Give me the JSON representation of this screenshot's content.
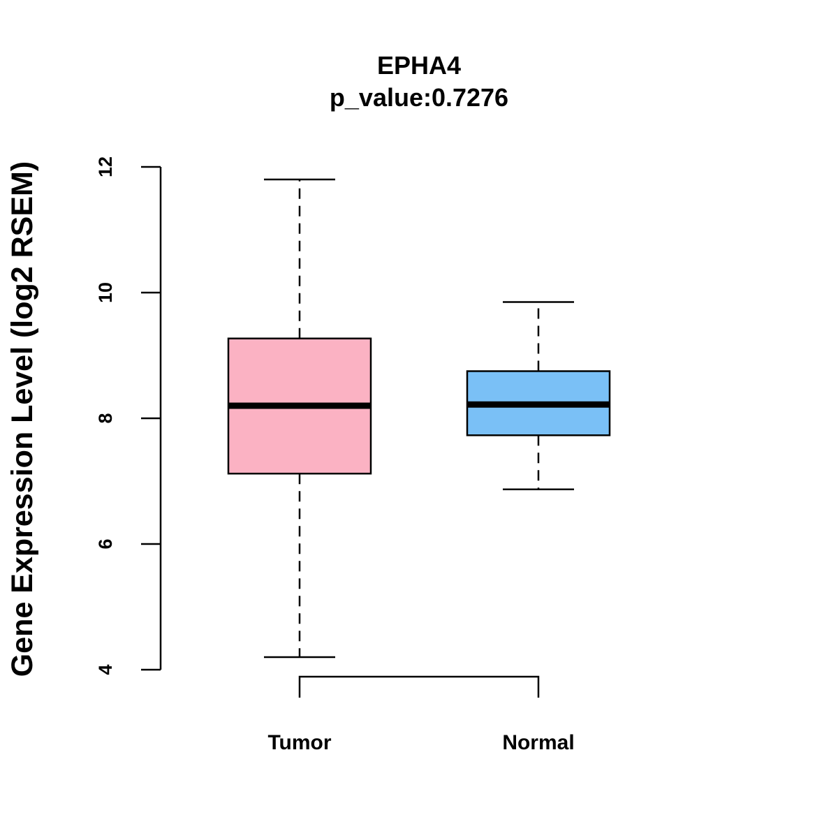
{
  "chart_data": {
    "type": "boxplot",
    "title": "EPHA4",
    "subtitle": "p_value:0.7276",
    "xlabel": "",
    "ylabel": "Gene Expression Level (log2 RSEM)",
    "ylim": [
      4,
      12
    ],
    "yticks": [
      4,
      6,
      8,
      10,
      12
    ],
    "ytick_labels": [
      "4",
      "6",
      "8",
      "10",
      "12"
    ],
    "grid": false,
    "categories": [
      "Tumor",
      "Normal"
    ],
    "groups": [
      {
        "name": "Tumor",
        "whisker_low": 4.2,
        "q1": 7.12,
        "median": 8.2,
        "q3": 9.27,
        "whisker_high": 11.8,
        "color": "#FBB2C3"
      },
      {
        "name": "Normal",
        "whisker_low": 6.87,
        "q1": 7.73,
        "median": 8.22,
        "q3": 8.75,
        "whisker_high": 9.85,
        "color": "#7AC0F6"
      }
    ],
    "significance_bracket": {
      "from": "Tumor",
      "to": "Normal"
    }
  }
}
